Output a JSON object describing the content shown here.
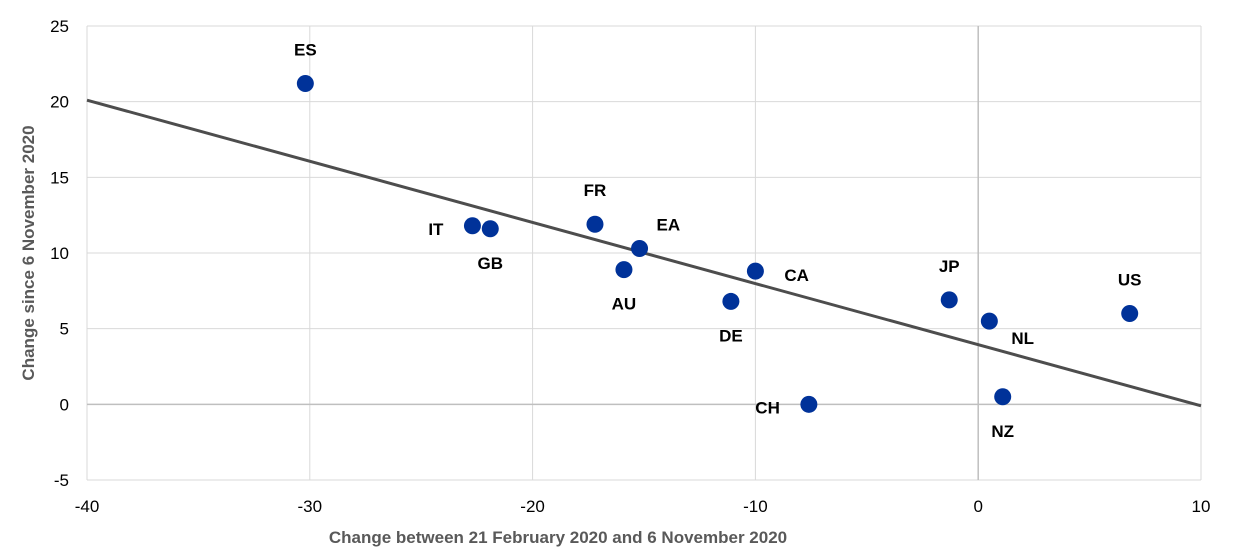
{
  "chart_data": {
    "type": "scatter",
    "xlabel": "Change between 21 February 2020 and 6 November 2020",
    "ylabel": "Change since 6 November 2020",
    "xlim": [
      -40,
      10
    ],
    "ylim": [
      -5,
      25
    ],
    "x_ticks": [
      -40,
      -30,
      -20,
      -10,
      0,
      10
    ],
    "y_ticks": [
      -5,
      0,
      5,
      10,
      15,
      20,
      25
    ],
    "grid": true,
    "marker_color": "#003299",
    "trendline_color": "#4d4d4d",
    "gridline_color": "#d9d9d9",
    "zero_line_color": "#bfbfbf",
    "points": [
      {
        "label": "ES",
        "x": -30.2,
        "y": 21.2,
        "label_pos": "above"
      },
      {
        "label": "IT",
        "x": -22.7,
        "y": 11.8,
        "label_pos": "left"
      },
      {
        "label": "GB",
        "x": -21.9,
        "y": 11.6,
        "label_pos": "below"
      },
      {
        "label": "FR",
        "x": -17.2,
        "y": 11.9,
        "label_pos": "above"
      },
      {
        "label": "EA",
        "x": -15.2,
        "y": 10.3,
        "label_pos": "upper-right"
      },
      {
        "label": "AU",
        "x": -15.9,
        "y": 8.9,
        "label_pos": "below"
      },
      {
        "label": "DE",
        "x": -11.1,
        "y": 6.8,
        "label_pos": "below"
      },
      {
        "label": "CA",
        "x": -10.0,
        "y": 8.8,
        "label_pos": "right"
      },
      {
        "label": "CH",
        "x": -7.6,
        "y": 0.0,
        "label_pos": "left"
      },
      {
        "label": "JP",
        "x": -1.3,
        "y": 6.9,
        "label_pos": "above"
      },
      {
        "label": "NL",
        "x": 0.5,
        "y": 5.5,
        "label_pos": "lower-right"
      },
      {
        "label": "NZ",
        "x": 1.1,
        "y": 0.5,
        "label_pos": "below"
      },
      {
        "label": "US",
        "x": 6.8,
        "y": 6.0,
        "label_pos": "above"
      }
    ],
    "trendline": {
      "x": [
        -40,
        10
      ],
      "y": [
        20.1,
        -0.1
      ]
    }
  }
}
